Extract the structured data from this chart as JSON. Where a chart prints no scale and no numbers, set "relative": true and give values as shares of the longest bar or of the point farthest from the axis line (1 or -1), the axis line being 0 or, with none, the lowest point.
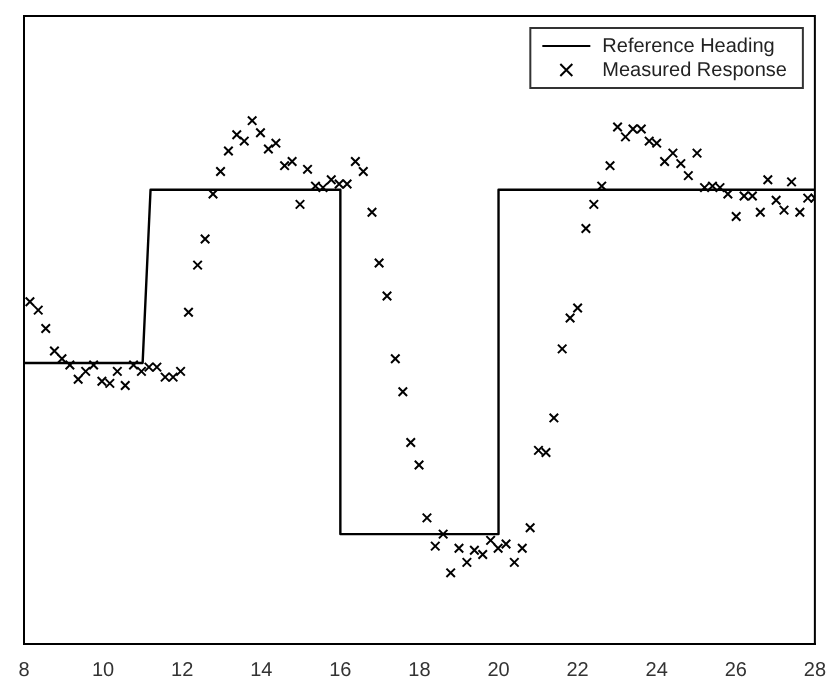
{
  "chart_data": {
    "type": "line",
    "relative": true,
    "xlim": [
      8,
      28
    ],
    "xticks": [
      8,
      10,
      12,
      14,
      16,
      18,
      20,
      22,
      24,
      26,
      28
    ],
    "grid": false,
    "legend": "top right",
    "series": [
      {
        "name": "Reference Heading",
        "type": "line",
        "color": "#000000",
        "marker": "none",
        "line_style": "solid",
        "x": [
          8,
          11,
          11.2,
          16,
          16,
          20,
          20,
          28
        ],
        "values": [
          0.537,
          0.537,
          0.868,
          0.868,
          0.21,
          0.21,
          0.868,
          0.868
        ]
      },
      {
        "name": "Measured Response",
        "type": "scatter",
        "color": "#000000",
        "marker": "cross",
        "x": [
          8.15,
          8.36,
          8.55,
          8.77,
          8.96,
          9.16,
          9.37,
          9.56,
          9.76,
          9.97,
          10.17,
          10.36,
          10.56,
          10.77,
          10.97,
          11.16,
          11.36,
          11.57,
          11.77,
          11.96,
          12.16,
          12.39,
          12.58,
          12.78,
          12.97,
          13.17,
          13.38,
          13.57,
          13.77,
          13.98,
          14.18,
          14.37,
          14.59,
          14.78,
          14.98,
          15.17,
          15.37,
          15.56,
          15.77,
          15.97,
          16.17,
          16.38,
          16.58,
          16.8,
          16.98,
          17.18,
          17.39,
          17.58,
          17.78,
          17.99,
          18.19,
          18.4,
          18.6,
          18.79,
          19.0,
          19.2,
          19.39,
          19.6,
          19.8,
          19.99,
          20.19,
          20.4,
          20.6,
          20.8,
          21.01,
          21.2,
          21.4,
          21.61,
          21.81,
          22.0,
          22.21,
          22.41,
          22.61,
          22.82,
          23.01,
          23.21,
          23.4,
          23.61,
          23.81,
          24.0,
          24.2,
          24.41,
          24.61,
          24.8,
          25.02,
          25.21,
          25.41,
          25.6,
          25.8,
          26.01,
          26.21,
          26.42,
          26.62,
          26.81,
          27.02,
          27.22,
          27.41,
          27.62,
          27.82,
          28.0
        ],
        "values": [
          0.654,
          0.638,
          0.603,
          0.56,
          0.545,
          0.533,
          0.506,
          0.521,
          0.533,
          0.502,
          0.498,
          0.521,
          0.494,
          0.533,
          0.521,
          0.529,
          0.529,
          0.51,
          0.51,
          0.521,
          0.634,
          0.724,
          0.774,
          0.86,
          0.903,
          0.942,
          0.973,
          0.961,
          1.0,
          0.977,
          0.946,
          0.957,
          0.914,
          0.922,
          0.84,
          0.907,
          0.875,
          0.872,
          0.887,
          0.879,
          0.879,
          0.922,
          0.903,
          0.825,
          0.728,
          0.665,
          0.545,
          0.482,
          0.385,
          0.342,
          0.241,
          0.187,
          0.21,
          0.136,
          0.183,
          0.156,
          0.179,
          0.171,
          0.198,
          0.183,
          0.191,
          0.156,
          0.183,
          0.222,
          0.37,
          0.366,
          0.432,
          0.564,
          0.623,
          0.642,
          0.794,
          0.84,
          0.875,
          0.914,
          0.988,
          0.969,
          0.984,
          0.984,
          0.961,
          0.957,
          0.922,
          0.938,
          0.918,
          0.895,
          0.938,
          0.872,
          0.875,
          0.872,
          0.86,
          0.817,
          0.856,
          0.856,
          0.825,
          0.887,
          0.848,
          0.829,
          0.883,
          0.825,
          0.852,
          0.852
        ]
      }
    ]
  }
}
